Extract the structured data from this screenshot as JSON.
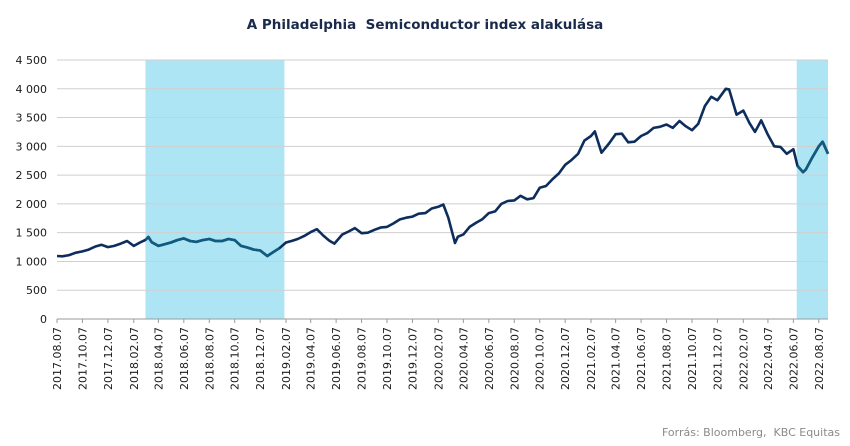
{
  "chart_data": {
    "type": "line",
    "title": "A Philadelphia  Semiconductor index alakulása",
    "source": "Forrás: Bloomberg,  KBC Equitas",
    "ylim": [
      0,
      4500
    ],
    "yticks": [
      {
        "value": 0,
        "label": "0"
      },
      {
        "value": 500,
        "label": "500"
      },
      {
        "value": 1000,
        "label": "1 000"
      },
      {
        "value": 1500,
        "label": "1 500"
      },
      {
        "value": 2000,
        "label": "2 000"
      },
      {
        "value": 2500,
        "label": "2 500"
      },
      {
        "value": 3000,
        "label": "3 000"
      },
      {
        "value": 3500,
        "label": "3 500"
      },
      {
        "value": 4000,
        "label": "4 000"
      },
      {
        "value": 4500,
        "label": "4 500"
      }
    ],
    "xlim": [
      "2017-08-07",
      "2022-08-29"
    ],
    "xticks": [
      "2017.08.07",
      "2017.10.07",
      "2017.12.07",
      "2018.02.07",
      "2018.04.07",
      "2018.06.07",
      "2018.08.07",
      "2018.10.07",
      "2018.12.07",
      "2019.02.07",
      "2019.04.07",
      "2019.06.07",
      "2019.08.07",
      "2019.10.07",
      "2019.12.07",
      "2020.02.07",
      "2020.04.07",
      "2020.06.07",
      "2020.08.07",
      "2020.10.07",
      "2020.12.07",
      "2021.02.07",
      "2021.04.07",
      "2021.06.07",
      "2021.08.07",
      "2021.10.07",
      "2021.12.07",
      "2022.02.07",
      "2022.04.07",
      "2022.06.07",
      "2022.08.07"
    ],
    "grid": true,
    "highlight_periods": [
      {
        "start": "2018-03-07",
        "end": "2019-02-03"
      },
      {
        "start": "2022-06-15",
        "end": "2022-08-29"
      }
    ],
    "colors": {
      "line": "#0d2d5c",
      "line_highlight": "#0f5c7e",
      "band": "#aee5f5",
      "grid": "#cfcfcf"
    },
    "series": [
      {
        "values": [
          [
            "2017-08-07",
            1095
          ],
          [
            "2017-08-20",
            1090
          ],
          [
            "2017-09-05",
            1110
          ],
          [
            "2017-09-20",
            1150
          ],
          [
            "2017-10-07",
            1175
          ],
          [
            "2017-10-22",
            1205
          ],
          [
            "2017-11-07",
            1260
          ],
          [
            "2017-11-22",
            1290
          ],
          [
            "2017-12-07",
            1250
          ],
          [
            "2017-12-22",
            1270
          ],
          [
            "2018-01-07",
            1310
          ],
          [
            "2018-01-22",
            1355
          ],
          [
            "2018-02-07",
            1270
          ],
          [
            "2018-02-22",
            1330
          ],
          [
            "2018-03-07",
            1375
          ],
          [
            "2018-03-14",
            1425
          ],
          [
            "2018-03-22",
            1335
          ],
          [
            "2018-04-07",
            1270
          ],
          [
            "2018-04-22",
            1300
          ],
          [
            "2018-05-07",
            1330
          ],
          [
            "2018-05-22",
            1370
          ],
          [
            "2018-06-07",
            1400
          ],
          [
            "2018-06-22",
            1355
          ],
          [
            "2018-07-07",
            1340
          ],
          [
            "2018-07-22",
            1370
          ],
          [
            "2018-08-07",
            1390
          ],
          [
            "2018-08-22",
            1355
          ],
          [
            "2018-09-07",
            1355
          ],
          [
            "2018-09-22",
            1390
          ],
          [
            "2018-10-07",
            1370
          ],
          [
            "2018-10-22",
            1270
          ],
          [
            "2018-11-07",
            1240
          ],
          [
            "2018-11-22",
            1205
          ],
          [
            "2018-12-07",
            1190
          ],
          [
            "2018-12-24",
            1095
          ],
          [
            "2019-01-07",
            1160
          ],
          [
            "2019-01-22",
            1230
          ],
          [
            "2019-02-07",
            1330
          ],
          [
            "2019-02-22",
            1360
          ],
          [
            "2019-03-07",
            1390
          ],
          [
            "2019-03-22",
            1440
          ],
          [
            "2019-04-07",
            1510
          ],
          [
            "2019-04-22",
            1560
          ],
          [
            "2019-05-07",
            1450
          ],
          [
            "2019-05-22",
            1360
          ],
          [
            "2019-06-03",
            1310
          ],
          [
            "2019-06-22",
            1470
          ],
          [
            "2019-07-07",
            1520
          ],
          [
            "2019-07-22",
            1580
          ],
          [
            "2019-08-07",
            1490
          ],
          [
            "2019-08-22",
            1500
          ],
          [
            "2019-09-07",
            1550
          ],
          [
            "2019-09-22",
            1590
          ],
          [
            "2019-10-07",
            1600
          ],
          [
            "2019-10-22",
            1660
          ],
          [
            "2019-11-07",
            1730
          ],
          [
            "2019-11-22",
            1760
          ],
          [
            "2019-12-07",
            1780
          ],
          [
            "2019-12-22",
            1830
          ],
          [
            "2020-01-07",
            1840
          ],
          [
            "2020-01-22",
            1920
          ],
          [
            "2020-02-07",
            1950
          ],
          [
            "2020-02-19",
            1990
          ],
          [
            "2020-03-02",
            1760
          ],
          [
            "2020-03-18",
            1320
          ],
          [
            "2020-03-25",
            1430
          ],
          [
            "2020-04-07",
            1470
          ],
          [
            "2020-04-22",
            1600
          ],
          [
            "2020-05-07",
            1670
          ],
          [
            "2020-05-22",
            1730
          ],
          [
            "2020-06-07",
            1840
          ],
          [
            "2020-06-22",
            1870
          ],
          [
            "2020-07-07",
            2000
          ],
          [
            "2020-07-22",
            2050
          ],
          [
            "2020-08-07",
            2060
          ],
          [
            "2020-08-22",
            2140
          ],
          [
            "2020-09-07",
            2080
          ],
          [
            "2020-09-22",
            2100
          ],
          [
            "2020-10-07",
            2280
          ],
          [
            "2020-10-22",
            2310
          ],
          [
            "2020-11-07",
            2430
          ],
          [
            "2020-11-22",
            2530
          ],
          [
            "2020-12-07",
            2680
          ],
          [
            "2020-12-22",
            2760
          ],
          [
            "2021-01-07",
            2870
          ],
          [
            "2021-01-22",
            3100
          ],
          [
            "2021-02-07",
            3180
          ],
          [
            "2021-02-16",
            3260
          ],
          [
            "2021-03-04",
            2890
          ],
          [
            "2021-03-22",
            3050
          ],
          [
            "2021-04-07",
            3210
          ],
          [
            "2021-04-22",
            3220
          ],
          [
            "2021-05-07",
            3070
          ],
          [
            "2021-05-22",
            3080
          ],
          [
            "2021-06-07",
            3180
          ],
          [
            "2021-06-22",
            3230
          ],
          [
            "2021-07-07",
            3320
          ],
          [
            "2021-07-22",
            3340
          ],
          [
            "2021-08-07",
            3380
          ],
          [
            "2021-08-22",
            3320
          ],
          [
            "2021-09-07",
            3440
          ],
          [
            "2021-09-22",
            3350
          ],
          [
            "2021-10-07",
            3280
          ],
          [
            "2021-10-22",
            3390
          ],
          [
            "2021-11-07",
            3700
          ],
          [
            "2021-11-22",
            3860
          ],
          [
            "2021-12-07",
            3800
          ],
          [
            "2021-12-27",
            4000
          ],
          [
            "2022-01-04",
            3990
          ],
          [
            "2022-01-22",
            3550
          ],
          [
            "2022-02-07",
            3620
          ],
          [
            "2022-02-22",
            3400
          ],
          [
            "2022-03-07",
            3250
          ],
          [
            "2022-03-22",
            3450
          ],
          [
            "2022-04-07",
            3200
          ],
          [
            "2022-04-22",
            3000
          ],
          [
            "2022-05-07",
            2990
          ],
          [
            "2022-05-22",
            2870
          ],
          [
            "2022-06-07",
            2950
          ],
          [
            "2022-06-17",
            2660
          ],
          [
            "2022-06-30",
            2550
          ],
          [
            "2022-07-07",
            2600
          ],
          [
            "2022-07-22",
            2800
          ],
          [
            "2022-08-07",
            3000
          ],
          [
            "2022-08-16",
            3080
          ],
          [
            "2022-08-29",
            2870
          ]
        ]
      }
    ]
  }
}
